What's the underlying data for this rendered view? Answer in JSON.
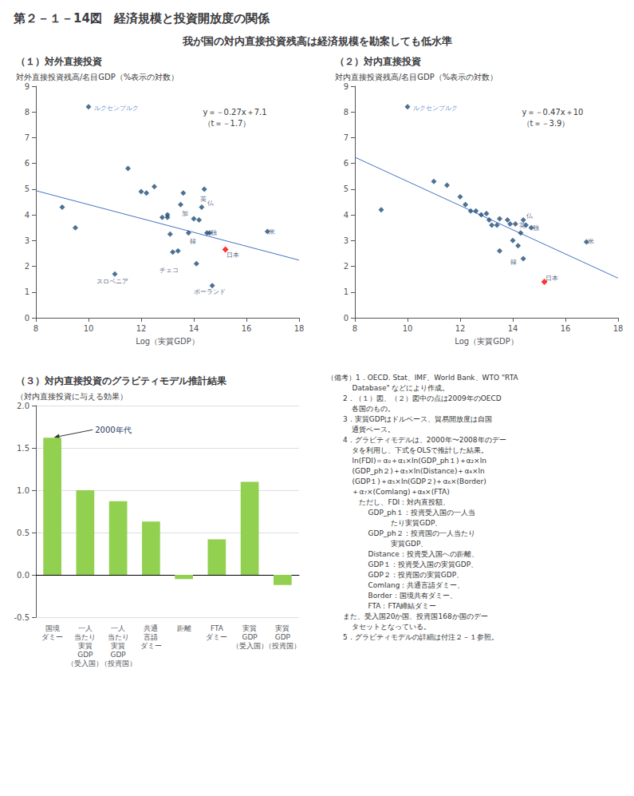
{
  "title": "第２－１－14図　経済規模と投資開放度の関係",
  "subtitle": "我が国の対内直接投資残高は経済規模を勘案しても低水準",
  "notes": [
    "（備考）1．OECD. Stat、IMF、World Bank、WTO \"RTA",
    "           Database\" などにより作成。",
    "       2．（１）図、（２）図中の点は2009年のOECD",
    "           各国のもの。",
    "       3．実質GDPはドルベース、貿易開放度は自国",
    "           通貨ベース。",
    "       4．グラビティモデルは、2000年〜2008年のデー",
    "           タを利用し、下式をOLSで推計した結果。",
    "           ln(FDI)＝α₀＋α₁×ln(GDP_ph１)＋α₂×ln",
    "           (GDP_ph２)＋α₃×ln(Distance)＋α₄×ln",
    "           (GDP１)＋α₅×ln(GDP２)＋α₆×(Border)",
    "           ＋α₇×(Comlang)＋α₈×(FTA)",
    "           　ただし、FDI：対内直投額、",
    "                  GDP_ph１：投資受入国の一人当",
    "                            たり実質GDP、",
    "                  GDP_ph２：投資国の一人当たり",
    "                            実質GDP、",
    "                  Distance：投資受入国への距離、",
    "                  GDP１：投資受入国の実質GDP、",
    "                  GDP２：投資国の実質GDP、",
    "                  Comlang：共通言語ダミー、",
    "                  Border：国境共有ダミー、",
    "                  FTA：FTA締結ダミー",
    "       また、受入国20か国、投資国168か国のデー",
    "           タセットとなっている。",
    "       5．グラビティモデルの詳細は付注２－１参照。"
  ],
  "chart_data": [
    {
      "type": "scatter",
      "title": "（１）対外直接投資",
      "ylabel": "対外直接投資残高/名目GDP（%表示の対数）",
      "xlabel": "Log（実質GDP）",
      "equation": "y＝－0.27x＋7.1\n（t＝－1.7）",
      "xlim": [
        8,
        18
      ],
      "ylim": [
        0,
        9
      ],
      "xticks": [
        8,
        10,
        12,
        14,
        16,
        18
      ],
      "yticks": [
        0,
        1,
        2,
        3,
        4,
        5,
        6,
        7,
        8,
        9
      ],
      "grid": false,
      "series": [
        {
          "type": "scatter",
          "marker": "diamond",
          "color": "#1F4E79",
          "x": [
            10.0,
            9.0,
            9.5,
            11.0,
            11.5,
            12.0,
            12.2,
            12.5,
            12.8,
            13.0,
            13.0,
            13.1,
            13.2,
            13.4,
            13.5,
            13.6,
            13.8,
            14.0,
            14.1,
            14.2,
            14.3,
            14.4,
            14.5,
            14.6,
            14.7,
            16.8
          ],
          "values": [
            8.2,
            4.3,
            3.5,
            1.7,
            5.8,
            4.9,
            4.85,
            5.1,
            3.9,
            4.0,
            3.9,
            3.25,
            2.55,
            2.6,
            4.4,
            4.85,
            3.3,
            3.85,
            2.1,
            3.8,
            4.3,
            5.0,
            3.3,
            3.3,
            1.25,
            3.35
          ]
        },
        {
          "type": "scatter",
          "marker": "diamond",
          "color": "#FF0000",
          "x": [
            15.2
          ],
          "values": [
            2.65
          ]
        },
        {
          "type": "line",
          "line_style": "solid",
          "color": "#4472C4",
          "x": [
            8,
            18
          ],
          "values": [
            4.94,
            2.24
          ]
        }
      ],
      "annotations": [
        {
          "text": "ルクセンブルク",
          "x": 10.2,
          "y": 8.15,
          "color": "#4472C4"
        },
        {
          "text": "英",
          "x": 14.25,
          "y": 4.6,
          "color": "#1F3864"
        },
        {
          "text": "仏",
          "x": 14.5,
          "y": 4.45,
          "color": "#1F3864"
        },
        {
          "text": "加",
          "x": 13.55,
          "y": 4.05,
          "color": "#1F3864"
        },
        {
          "text": "独",
          "x": 14.65,
          "y": 3.3,
          "color": "#1F3864"
        },
        {
          "text": "米",
          "x": 16.85,
          "y": 3.35,
          "color": "#1F3864"
        },
        {
          "text": "韓",
          "x": 13.85,
          "y": 2.95,
          "color": "#1F3864"
        },
        {
          "text": "日本",
          "x": 15.25,
          "y": 2.45,
          "color": "#1F3864"
        },
        {
          "text": "スロベニア",
          "x": 10.3,
          "y": 1.4,
          "color": "#1F3864"
        },
        {
          "text": "チェコ",
          "x": 12.7,
          "y": 1.85,
          "color": "#1F3864"
        },
        {
          "text": "ポーランド",
          "x": 14.0,
          "y": 1.0,
          "color": "#1F3864"
        }
      ]
    },
    {
      "type": "scatter",
      "title": "（２）対内直接投資",
      "ylabel": "対内直接投資残高/名目GDP（%表示の対数）",
      "xlabel": "Log（実質GDP）",
      "equation": "y＝－0.47x＋10\n（t＝－3.9）",
      "xlim": [
        8,
        18
      ],
      "ylim": [
        0,
        9
      ],
      "xticks": [
        8,
        10,
        12,
        14,
        16,
        18
      ],
      "yticks": [
        0,
        1,
        2,
        3,
        4,
        5,
        6,
        7,
        8,
        9
      ],
      "grid": false,
      "series": [
        {
          "type": "scatter",
          "marker": "diamond",
          "color": "#1F4E79",
          "x": [
            10.0,
            9.0,
            11.0,
            11.5,
            12.0,
            12.2,
            12.4,
            12.6,
            12.8,
            13.0,
            13.1,
            13.2,
            13.4,
            13.5,
            13.5,
            13.8,
            13.9,
            14.0,
            14.1,
            14.2,
            14.3,
            14.4,
            14.5,
            14.7,
            14.4,
            16.8
          ],
          "values": [
            8.2,
            4.2,
            5.3,
            5.15,
            4.7,
            4.4,
            4.15,
            4.15,
            4.0,
            4.05,
            3.8,
            3.6,
            3.6,
            3.85,
            2.6,
            3.8,
            3.65,
            3.0,
            3.65,
            2.8,
            3.3,
            3.8,
            3.6,
            3.5,
            2.3,
            2.95
          ]
        },
        {
          "type": "scatter",
          "marker": "diamond",
          "color": "#FF0000",
          "x": [
            15.2
          ],
          "values": [
            1.4
          ]
        },
        {
          "type": "line",
          "line_style": "solid",
          "color": "#4472C4",
          "x": [
            8,
            18
          ],
          "values": [
            6.24,
            1.54
          ]
        }
      ],
      "annotations": [
        {
          "text": "ルクセンブルク",
          "x": 10.2,
          "y": 8.15,
          "color": "#4472C4"
        },
        {
          "text": "英",
          "x": 14.25,
          "y": 3.6,
          "color": "#1F3864"
        },
        {
          "text": "仏",
          "x": 14.5,
          "y": 3.95,
          "color": "#1F3864"
        },
        {
          "text": "独",
          "x": 14.75,
          "y": 3.5,
          "color": "#1F3864"
        },
        {
          "text": "米",
          "x": 16.85,
          "y": 2.95,
          "color": "#1F3864"
        },
        {
          "text": "韓",
          "x": 13.9,
          "y": 2.15,
          "color": "#1F3864"
        },
        {
          "text": "日本",
          "x": 15.25,
          "y": 1.55,
          "color": "#1F3864"
        }
      ]
    },
    {
      "type": "bar",
      "title": "（３）対内直接投資のグラビティモデル推計結果",
      "subtitle": "（対内直接投資に与える効果）",
      "categories": [
        "国境\nダミー",
        "一人\n当たり\n実質\nGDP\n（受入国）",
        "一人\n当たり\n実質\nGDP\n（投資国）",
        "共通\n言語\nダミー",
        "距離",
        "FTA\nダミー",
        "実質\nGDP\n（受入国）",
        "実質\nGDP\n（投資国）"
      ],
      "values": [
        1.62,
        1.0,
        0.87,
        0.63,
        -0.05,
        0.42,
        1.1,
        -0.12
      ],
      "color": "#92D050",
      "ylim": [
        -0.5,
        2.0
      ],
      "yticks": [
        -0.5,
        {
          "value": 0,
          "label": "0.0"
        },
        0.5,
        {
          "value": 1,
          "label": "1.0"
        },
        1.5,
        {
          "value": 2,
          "label": "2.0"
        }
      ],
      "grid": true,
      "annotations": [
        {
          "text": "2000年代",
          "x": "国境\nダミー",
          "y": 1.62
        }
      ]
    }
  ]
}
